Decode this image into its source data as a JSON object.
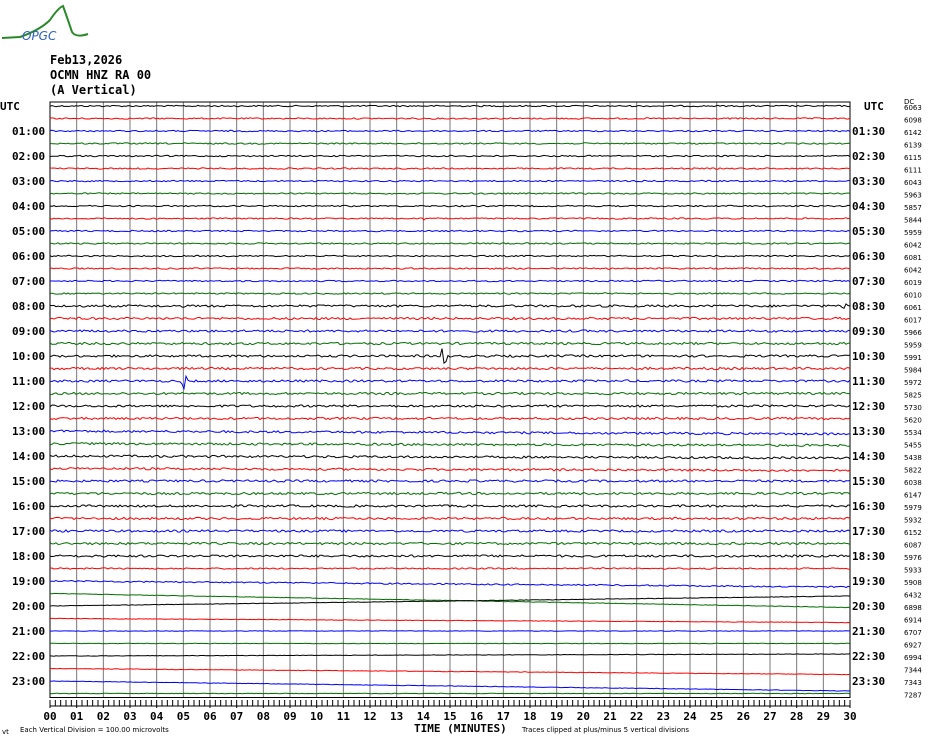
{
  "logo": {
    "text": "OPGC"
  },
  "header": {
    "date": "Feb13,2026",
    "station": "OCMN HNZ RA 00",
    "component": "(A Vertical)"
  },
  "utc_left": "UTC",
  "utc_right": "UTC",
  "dc_label": "DC",
  "left_labels": [
    "01:00",
    "02:00",
    "03:00",
    "04:00",
    "05:00",
    "06:00",
    "07:00",
    "08:00",
    "09:00",
    "10:00",
    "11:00",
    "12:00",
    "13:00",
    "14:00",
    "15:00",
    "16:00",
    "17:00",
    "18:00",
    "19:00",
    "20:00",
    "21:00",
    "22:00",
    "23:00"
  ],
  "right_labels": [
    "01:30",
    "02:30",
    "03:30",
    "04:30",
    "05:30",
    "06:30",
    "07:30",
    "08:30",
    "09:30",
    "10:30",
    "11:30",
    "12:30",
    "13:30",
    "14:30",
    "15:30",
    "16:30",
    "17:30",
    "18:30",
    "19:30",
    "20:30",
    "21:30",
    "22:30",
    "23:30"
  ],
  "footer": {
    "scale": "Each Vertical Division =  100.00 microvolts",
    "xlabel": "TIME (MINUTES)",
    "clip": "Traces clipped at plus/minus 5 vertical divisions"
  },
  "chart_data": {
    "type": "line",
    "xlabel": "TIME (MINUTES)",
    "x_ticks": [
      "00",
      "01",
      "02",
      "03",
      "04",
      "05",
      "06",
      "07",
      "08",
      "09",
      "10",
      "11",
      "12",
      "13",
      "14",
      "15",
      "16",
      "17",
      "18",
      "19",
      "20",
      "21",
      "22",
      "23",
      "24",
      "25",
      "26",
      "27",
      "28",
      "29",
      "30"
    ],
    "xlim": [
      0,
      30
    ],
    "grid": true,
    "trace_colors": [
      "#000000",
      "#ff0000",
      "#0000ff",
      "#007000"
    ],
    "dc_offsets": [
      6063,
      6098,
      6142,
      6139,
      6115,
      6111,
      6043,
      5963,
      5857,
      5844,
      5959,
      6042,
      6081,
      6042,
      6019,
      6010,
      6061,
      6017,
      5966,
      5959,
      5991,
      5984,
      5972,
      5825,
      5730,
      5620,
      5534,
      5455,
      5438,
      5822,
      6038,
      6147,
      5979,
      5932,
      6152,
      6087,
      5976,
      5933,
      5908,
      6432,
      6898,
      6914,
      6707,
      6927,
      6994,
      7344,
      7343,
      7287
    ]
  }
}
